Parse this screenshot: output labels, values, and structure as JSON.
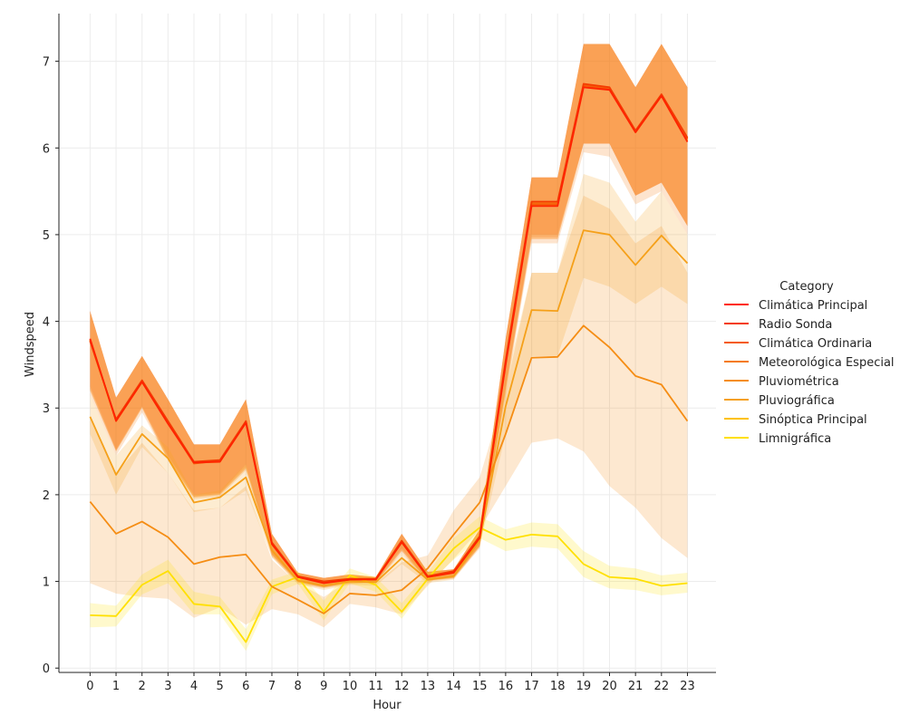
{
  "chart_data": {
    "type": "line",
    "title": "",
    "xlabel": "Hour",
    "ylabel": "Windspeed",
    "x": [
      0,
      1,
      2,
      3,
      4,
      5,
      6,
      7,
      8,
      9,
      10,
      11,
      12,
      13,
      14,
      15,
      16,
      17,
      18,
      19,
      20,
      21,
      22,
      23
    ],
    "xlim": [
      -1.2,
      24.1
    ],
    "ylim": [
      -0.05,
      7.55
    ],
    "y_ticks": [
      0,
      1,
      2,
      3,
      4,
      5,
      6,
      7
    ],
    "grid": true,
    "legend": {
      "title": "Category",
      "position": "right"
    },
    "series": [
      {
        "name": "Climática Principal",
        "color": "#ff2200",
        "values": [
          3.8,
          2.85,
          3.3,
          2.82,
          2.37,
          2.38,
          2.83,
          1.43,
          1.05,
          0.98,
          1.02,
          1.02,
          1.45,
          1.05,
          1.1,
          1.5,
          3.5,
          5.33,
          5.33,
          6.7,
          6.67,
          6.18,
          6.6,
          6.07
        ],
        "band": [
          [
            3.2,
            4.12
          ],
          [
            2.5,
            3.12
          ],
          [
            3.0,
            3.6
          ],
          [
            2.4,
            3.1
          ],
          [
            1.97,
            2.58
          ],
          [
            2.0,
            2.58
          ],
          [
            2.3,
            3.1
          ],
          [
            1.3,
            1.55
          ],
          [
            0.99,
            1.1
          ],
          [
            0.93,
            1.04
          ],
          [
            0.98,
            1.08
          ],
          [
            0.99,
            1.05
          ],
          [
            1.35,
            1.55
          ],
          [
            1.01,
            1.11
          ],
          [
            1.04,
            1.14
          ],
          [
            1.4,
            1.6
          ],
          [
            3.2,
            3.8
          ],
          [
            4.95,
            5.66
          ],
          [
            4.95,
            5.66
          ],
          [
            6.05,
            7.2
          ],
          [
            6.05,
            7.2
          ],
          [
            5.45,
            6.7
          ],
          [
            5.6,
            7.2
          ],
          [
            5.1,
            6.7
          ]
        ]
      },
      {
        "name": "Radio Sonda",
        "color": "#f43b00",
        "values": [
          3.77,
          2.87,
          3.32,
          2.85,
          2.38,
          2.4,
          2.85,
          1.45,
          1.06,
          1.0,
          1.03,
          1.03,
          1.47,
          1.06,
          1.12,
          1.52,
          3.55,
          5.38,
          5.38,
          6.74,
          6.7,
          6.2,
          6.62,
          6.12
        ],
        "band": [
          [
            3.25,
            4.12
          ],
          [
            2.52,
            3.12
          ],
          [
            3.02,
            3.6
          ],
          [
            2.45,
            3.1
          ],
          [
            2.0,
            2.58
          ],
          [
            2.02,
            2.58
          ],
          [
            2.35,
            3.1
          ],
          [
            1.32,
            1.55
          ],
          [
            1.0,
            1.1
          ],
          [
            0.94,
            1.04
          ],
          [
            0.99,
            1.08
          ],
          [
            1.0,
            1.05
          ],
          [
            1.38,
            1.55
          ],
          [
            1.02,
            1.11
          ],
          [
            1.05,
            1.14
          ],
          [
            1.42,
            1.6
          ],
          [
            3.25,
            3.8
          ],
          [
            5.0,
            5.66
          ],
          [
            5.0,
            5.66
          ],
          [
            6.05,
            7.2
          ],
          [
            6.05,
            7.2
          ],
          [
            5.45,
            6.7
          ],
          [
            5.6,
            7.2
          ],
          [
            5.1,
            6.7
          ]
        ]
      },
      {
        "name": "Climática Ordinaria",
        "color": "#f55a0a",
        "values": [
          3.78,
          2.86,
          3.31,
          2.83,
          2.36,
          2.39,
          2.84,
          1.44,
          1.05,
          0.99,
          1.02,
          1.02,
          1.46,
          1.05,
          1.11,
          1.51,
          3.52,
          5.35,
          5.35,
          6.72,
          6.68,
          6.19,
          6.61,
          6.1
        ],
        "band": [
          [
            3.22,
            4.12
          ],
          [
            2.51,
            3.12
          ],
          [
            3.01,
            3.6
          ],
          [
            2.42,
            3.1
          ],
          [
            1.98,
            2.58
          ],
          [
            2.01,
            2.58
          ],
          [
            2.32,
            3.1
          ],
          [
            1.31,
            1.55
          ],
          [
            0.99,
            1.1
          ],
          [
            0.93,
            1.04
          ],
          [
            0.98,
            1.08
          ],
          [
            0.99,
            1.05
          ],
          [
            1.36,
            1.55
          ],
          [
            1.01,
            1.11
          ],
          [
            1.04,
            1.14
          ],
          [
            1.41,
            1.6
          ],
          [
            3.22,
            3.8
          ],
          [
            4.97,
            5.66
          ],
          [
            4.97,
            5.66
          ],
          [
            6.05,
            7.2
          ],
          [
            6.05,
            7.2
          ],
          [
            5.45,
            6.7
          ],
          [
            5.6,
            7.2
          ],
          [
            5.1,
            6.7
          ]
        ]
      },
      {
        "name": "Meteorológica Especial",
        "color": "#f57a0c",
        "values": [
          3.79,
          2.86,
          3.31,
          2.84,
          2.37,
          2.39,
          2.84,
          1.44,
          1.05,
          0.99,
          1.02,
          1.02,
          1.46,
          1.05,
          1.11,
          1.51,
          3.53,
          5.36,
          5.36,
          6.73,
          6.69,
          6.19,
          6.61,
          6.11
        ],
        "band": [
          [
            3.15,
            4.12
          ],
          [
            2.45,
            3.12
          ],
          [
            2.95,
            3.6
          ],
          [
            2.4,
            3.1
          ],
          [
            1.95,
            2.58
          ],
          [
            1.98,
            2.58
          ],
          [
            2.28,
            3.1
          ],
          [
            1.28,
            1.55
          ],
          [
            0.97,
            1.1
          ],
          [
            0.92,
            1.04
          ],
          [
            0.97,
            1.08
          ],
          [
            0.98,
            1.05
          ],
          [
            1.33,
            1.55
          ],
          [
            1.0,
            1.11
          ],
          [
            1.03,
            1.14
          ],
          [
            1.38,
            1.6
          ],
          [
            3.15,
            3.8
          ],
          [
            4.9,
            5.66
          ],
          [
            4.9,
            5.66
          ],
          [
            5.95,
            7.2
          ],
          [
            5.9,
            7.2
          ],
          [
            5.35,
            6.7
          ],
          [
            5.5,
            7.2
          ],
          [
            5.0,
            6.7
          ]
        ]
      },
      {
        "name": "Pluviométrica",
        "color": "#f58d14",
        "values": [
          1.92,
          1.55,
          1.69,
          1.51,
          1.2,
          1.28,
          1.31,
          0.94,
          0.79,
          0.63,
          0.86,
          0.84,
          0.9,
          1.15,
          1.54,
          1.91,
          2.7,
          3.58,
          3.59,
          3.95,
          3.7,
          3.37,
          3.27,
          2.85
        ],
        "band": [
          [
            0.98,
            2.9
          ],
          [
            0.86,
            2.24
          ],
          [
            0.82,
            2.6
          ],
          [
            0.8,
            2.25
          ],
          [
            0.58,
            1.82
          ],
          [
            0.7,
            1.85
          ],
          [
            0.5,
            2.1
          ],
          [
            0.68,
            1.25
          ],
          [
            0.62,
            0.98
          ],
          [
            0.47,
            0.82
          ],
          [
            0.74,
            1.02
          ],
          [
            0.7,
            0.98
          ],
          [
            0.62,
            1.22
          ],
          [
            0.95,
            1.3
          ],
          [
            1.26,
            1.82
          ],
          [
            1.6,
            2.2
          ],
          [
            2.1,
            3.2
          ],
          [
            2.6,
            4.56
          ],
          [
            2.65,
            4.56
          ],
          [
            2.5,
            5.45
          ],
          [
            2.1,
            5.3
          ],
          [
            1.85,
            4.9
          ],
          [
            1.5,
            5.1
          ],
          [
            1.27,
            4.56
          ]
        ]
      },
      {
        "name": "Pluviográfica",
        "color": "#f5a019",
        "values": [
          2.9,
          2.23,
          2.7,
          2.42,
          1.91,
          1.97,
          2.2,
          1.36,
          1.01,
          0.95,
          1.0,
          0.99,
          1.27,
          1.02,
          1.06,
          1.47,
          3.02,
          4.13,
          4.12,
          5.05,
          5.0,
          4.65,
          4.99,
          4.67
        ],
        "band": [
          [
            2.7,
            3.15
          ],
          [
            2.0,
            2.45
          ],
          [
            2.55,
            2.8
          ],
          [
            2.25,
            2.55
          ],
          [
            1.8,
            2.0
          ],
          [
            1.85,
            2.05
          ],
          [
            2.05,
            2.35
          ],
          [
            1.28,
            1.45
          ],
          [
            0.97,
            1.06
          ],
          [
            0.9,
            1.0
          ],
          [
            0.96,
            1.05
          ],
          [
            0.95,
            1.03
          ],
          [
            1.2,
            1.33
          ],
          [
            0.98,
            1.06
          ],
          [
            1.02,
            1.1
          ],
          [
            1.4,
            1.55
          ],
          [
            2.7,
            3.3
          ],
          [
            3.6,
            4.56
          ],
          [
            3.6,
            4.56
          ],
          [
            4.5,
            5.7
          ],
          [
            4.4,
            5.6
          ],
          [
            4.2,
            5.15
          ],
          [
            4.4,
            5.5
          ],
          [
            4.2,
            5.0
          ]
        ]
      },
      {
        "name": "Sinóptica Principal",
        "color": "#fdc200",
        "values": [
          3.78,
          2.85,
          3.3,
          2.83,
          2.37,
          2.38,
          2.84,
          1.43,
          1.05,
          0.98,
          1.02,
          1.02,
          1.45,
          1.05,
          1.1,
          1.5,
          3.51,
          5.34,
          5.34,
          6.71,
          6.68,
          6.18,
          6.6,
          6.08
        ],
        "band": [
          [
            3.2,
            4.12
          ],
          [
            2.5,
            3.12
          ],
          [
            3.0,
            3.6
          ],
          [
            2.4,
            3.1
          ],
          [
            1.97,
            2.58
          ],
          [
            2.0,
            2.58
          ],
          [
            2.3,
            3.1
          ],
          [
            1.3,
            1.55
          ],
          [
            0.99,
            1.1
          ],
          [
            0.93,
            1.04
          ],
          [
            0.98,
            1.08
          ],
          [
            0.99,
            1.05
          ],
          [
            1.35,
            1.55
          ],
          [
            1.01,
            1.11
          ],
          [
            1.04,
            1.14
          ],
          [
            1.4,
            1.6
          ],
          [
            3.2,
            3.8
          ],
          [
            4.95,
            5.66
          ],
          [
            4.95,
            5.66
          ],
          [
            6.05,
            7.2
          ],
          [
            6.05,
            7.2
          ],
          [
            5.45,
            6.7
          ],
          [
            5.6,
            7.2
          ],
          [
            5.1,
            6.7
          ]
        ]
      },
      {
        "name": "Limnigráfica",
        "color": "#ffe000",
        "values": [
          0.61,
          0.6,
          0.96,
          1.12,
          0.74,
          0.71,
          0.3,
          0.94,
          1.05,
          0.65,
          1.07,
          0.96,
          0.65,
          1.03,
          1.38,
          1.62,
          1.48,
          1.54,
          1.52,
          1.2,
          1.05,
          1.03,
          0.95,
          0.98
        ],
        "band": [
          [
            0.47,
            0.75
          ],
          [
            0.48,
            0.72
          ],
          [
            0.85,
            1.08
          ],
          [
            0.98,
            1.25
          ],
          [
            0.62,
            0.88
          ],
          [
            0.62,
            0.82
          ],
          [
            0.2,
            0.45
          ],
          [
            0.85,
            1.02
          ],
          [
            0.97,
            1.12
          ],
          [
            0.55,
            0.78
          ],
          [
            0.98,
            1.15
          ],
          [
            0.88,
            1.05
          ],
          [
            0.57,
            0.75
          ],
          [
            0.97,
            1.1
          ],
          [
            1.25,
            1.5
          ],
          [
            1.5,
            1.75
          ],
          [
            1.35,
            1.6
          ],
          [
            1.4,
            1.68
          ],
          [
            1.38,
            1.66
          ],
          [
            1.05,
            1.35
          ],
          [
            0.92,
            1.18
          ],
          [
            0.9,
            1.15
          ],
          [
            0.84,
            1.07
          ],
          [
            0.87,
            1.1
          ]
        ]
      }
    ]
  }
}
